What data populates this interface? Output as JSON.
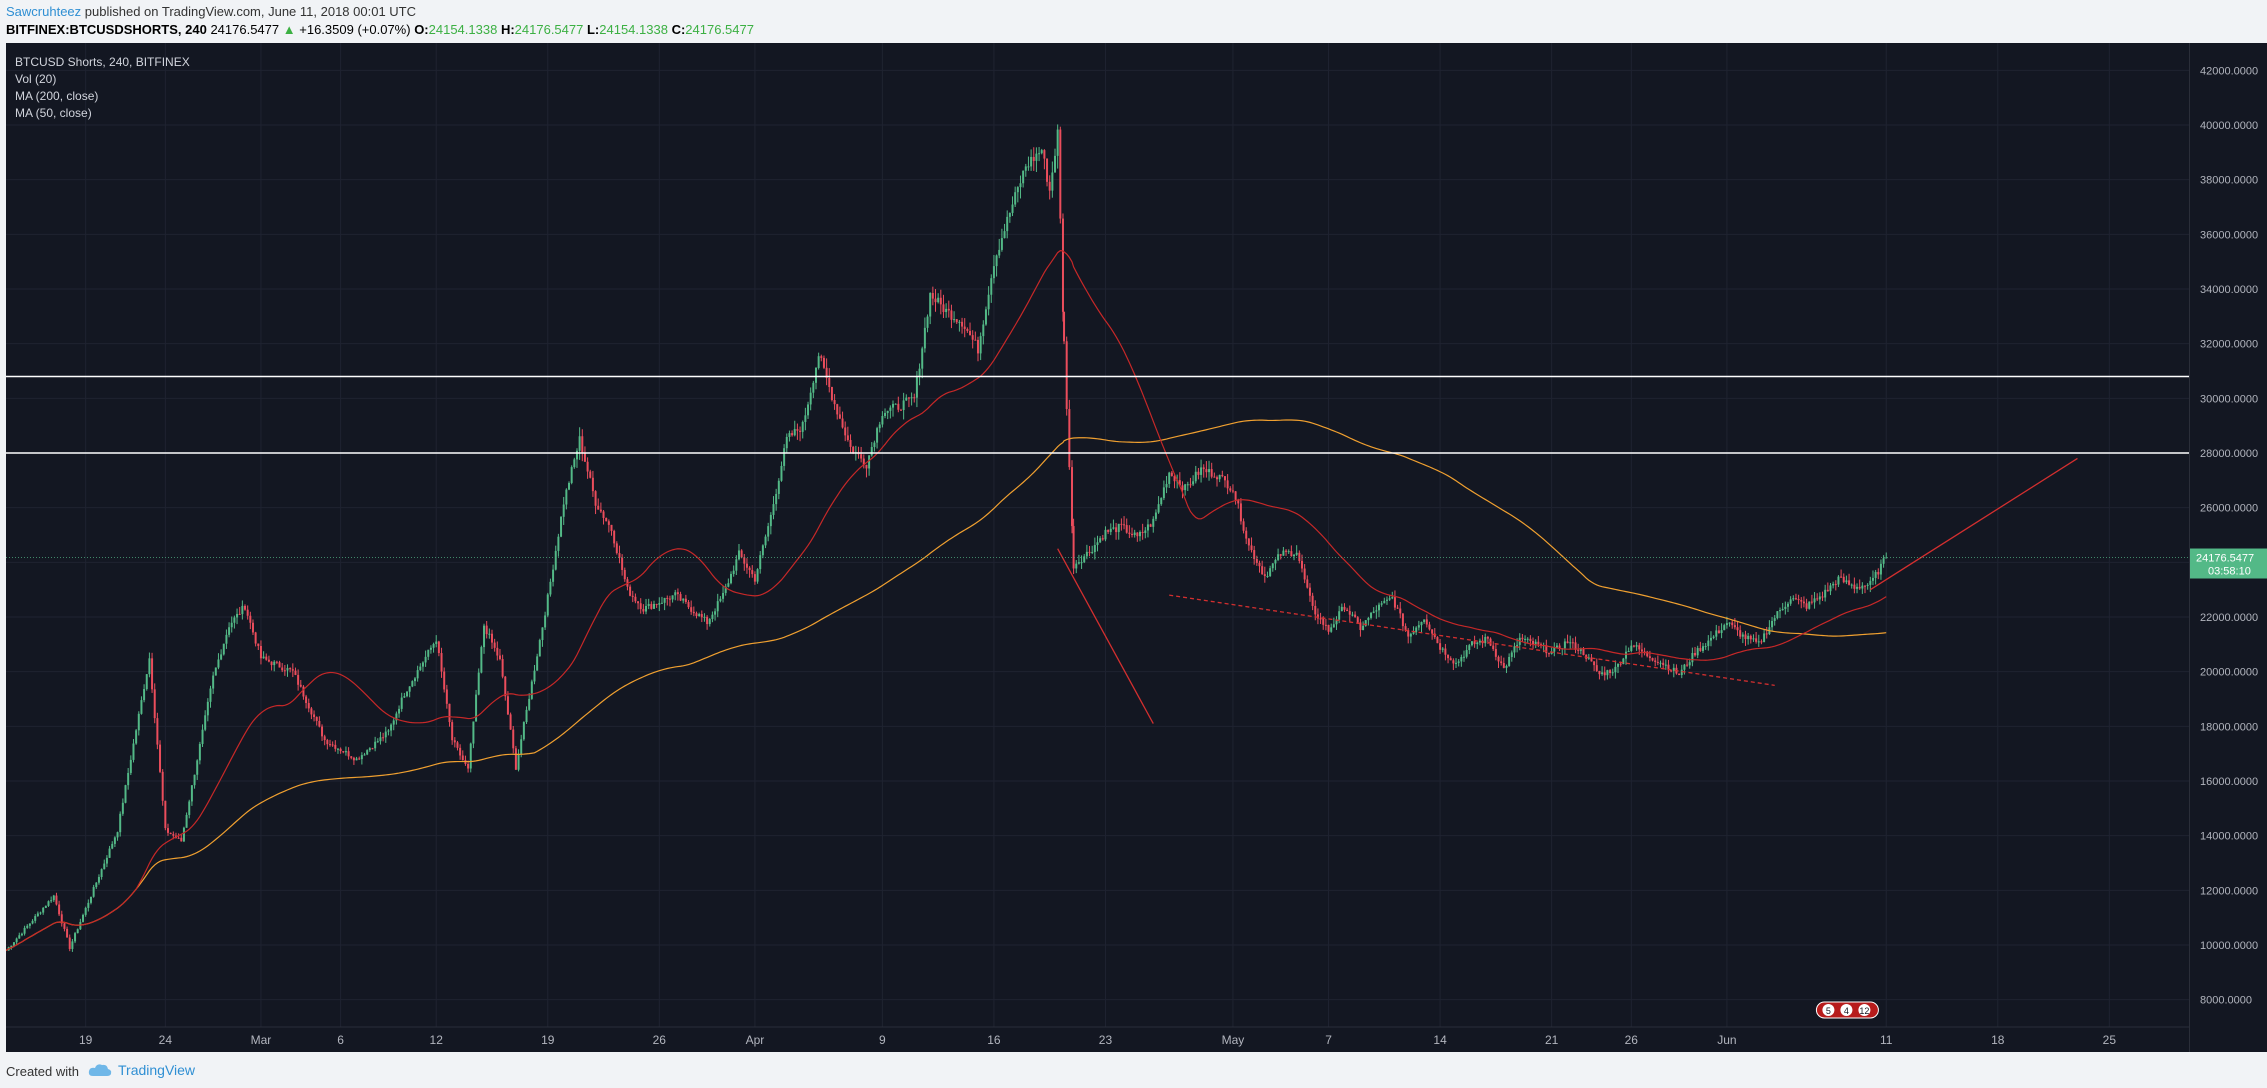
{
  "header": {
    "author": "Sawcruhteez",
    "published": "published on TradingView.com, June 11, 2018 00:01 UTC",
    "symbol": "BITFINEX:BTCUSDSHORTS, 240",
    "last": "24176.5477",
    "change_arrow": "▲",
    "change": "+16.3509 (+0.07%)",
    "o_label": "O:",
    "o_value": "24154.1338",
    "h_label": "H:",
    "h_value": "24176.5477",
    "l_label": "L:",
    "l_value": "24154.1338",
    "c_label": "C:",
    "c_value": "24176.5477"
  },
  "legend": {
    "title": "BTCUSD Shorts, 240, BITFINEX",
    "vol": "Vol (20)",
    "ma200": "MA (200, close)",
    "ma50": "MA (50, close)"
  },
  "price_tag": {
    "value": "24176.5477",
    "timer": "03:58:10"
  },
  "footer": {
    "created": "Created with",
    "brand": "TradingView"
  },
  "colors": {
    "background": "#131722",
    "up": "#53b987",
    "down": "#eb4d5c",
    "ma50": "#c62828",
    "ma200": "#f0a030",
    "hline": "#ffffff",
    "price_tag": "#53b987"
  },
  "chart_data": {
    "type": "candlestick",
    "y_ticks": [
      "42000.0000",
      "40000.0000",
      "38000.0000",
      "36000.0000",
      "34000.0000",
      "32000.0000",
      "30000.0000",
      "28000.0000",
      "26000.0000",
      "24000.0000",
      "22000.0000",
      "20000.0000",
      "18000.0000",
      "16000.0000",
      "14000.0000",
      "12000.0000",
      "10000.0000",
      "8000.0000"
    ],
    "ylim": [
      7000,
      43000
    ],
    "x_ticks": [
      "19",
      "24",
      "Mar",
      "6",
      "12",
      "19",
      "26",
      "Apr",
      "9",
      "16",
      "23",
      "May",
      "7",
      "14",
      "21",
      "26",
      "Jun",
      "11",
      "18",
      "25"
    ],
    "x_tick_days": [
      -21,
      -16,
      -10,
      -5,
      1,
      8,
      15,
      21,
      29,
      36,
      43,
      51,
      57,
      64,
      71,
      76,
      82,
      92,
      99,
      106
    ],
    "x_domain_days": [
      -26,
      111
    ],
    "x_origin_date": "2018-03-12",
    "horizontal_lines": [
      30800,
      28000
    ],
    "trend_lines": [
      {
        "style": "dashed",
        "from": [
          47,
          22800
        ],
        "to": [
          85,
          19500
        ]
      },
      {
        "style": "solid",
        "from": [
          40,
          24500
        ],
        "to": [
          46,
          18100
        ]
      },
      {
        "style": "solid",
        "from": [
          91,
          23000
        ],
        "to": [
          104,
          27800
        ]
      }
    ],
    "last_price": 24176.5477,
    "ohlc_key_points": [
      [
        -26,
        9800
      ],
      [
        -23,
        11800
      ],
      [
        -22,
        9900
      ],
      [
        -19,
        14200
      ],
      [
        -17,
        20500
      ],
      [
        -16,
        14200
      ],
      [
        -15,
        13800
      ],
      [
        -13,
        19800
      ],
      [
        -12,
        21700
      ],
      [
        -11,
        22400
      ],
      [
        -10,
        20500
      ],
      [
        -8,
        20000
      ],
      [
        -6,
        17500
      ],
      [
        -4,
        16800
      ],
      [
        -2,
        17800
      ],
      [
        -1,
        19200
      ],
      [
        1,
        21200
      ],
      [
        2,
        17500
      ],
      [
        3,
        16400
      ],
      [
        4,
        21700
      ],
      [
        5,
        20400
      ],
      [
        6,
        16500
      ],
      [
        8,
        22700
      ],
      [
        9,
        26200
      ],
      [
        10,
        28500
      ],
      [
        11,
        26200
      ],
      [
        12,
        25200
      ],
      [
        13,
        23000
      ],
      [
        14,
        22300
      ],
      [
        16,
        22800
      ],
      [
        18,
        21800
      ],
      [
        19,
        22800
      ],
      [
        20,
        24300
      ],
      [
        21,
        23400
      ],
      [
        22,
        25700
      ],
      [
        23,
        28500
      ],
      [
        24,
        29000
      ],
      [
        25,
        31600
      ],
      [
        26,
        29800
      ],
      [
        27,
        28200
      ],
      [
        28,
        27600
      ],
      [
        29,
        29500
      ],
      [
        30,
        29700
      ],
      [
        31,
        30000
      ],
      [
        32,
        33800
      ],
      [
        33,
        33200
      ],
      [
        34,
        32800
      ],
      [
        35,
        31800
      ],
      [
        36,
        35000
      ],
      [
        37,
        36800
      ],
      [
        38,
        38500
      ],
      [
        39,
        39100
      ],
      [
        39.5,
        37600
      ],
      [
        40,
        39700
      ],
      [
        40.4,
        32000
      ],
      [
        41,
        23900
      ],
      [
        42,
        24400
      ],
      [
        43,
        25100
      ],
      [
        44,
        25300
      ],
      [
        45,
        24900
      ],
      [
        46,
        25500
      ],
      [
        47,
        27300
      ],
      [
        48,
        26700
      ],
      [
        49,
        27400
      ],
      [
        50,
        27200
      ],
      [
        51,
        26700
      ],
      [
        52,
        24600
      ],
      [
        53,
        23500
      ],
      [
        54,
        24300
      ],
      [
        55,
        24400
      ],
      [
        56,
        22300
      ],
      [
        57,
        21500
      ],
      [
        58,
        22400
      ],
      [
        59,
        21600
      ],
      [
        60,
        22300
      ],
      [
        61,
        22700
      ],
      [
        62,
        21300
      ],
      [
        63,
        22000
      ],
      [
        64,
        20900
      ],
      [
        65,
        20300
      ],
      [
        66,
        21000
      ],
      [
        67,
        21200
      ],
      [
        68,
        20100
      ],
      [
        69,
        21200
      ],
      [
        70,
        21000
      ],
      [
        71,
        20700
      ],
      [
        72,
        21100
      ],
      [
        73,
        20700
      ],
      [
        74,
        19900
      ],
      [
        75,
        20100
      ],
      [
        76,
        21000
      ],
      [
        77,
        20600
      ],
      [
        78,
        20300
      ],
      [
        79,
        19900
      ],
      [
        80,
        20700
      ],
      [
        81,
        21200
      ],
      [
        82,
        21800
      ],
      [
        83,
        21300
      ],
      [
        84,
        21000
      ],
      [
        85,
        22000
      ],
      [
        86,
        22700
      ],
      [
        87,
        22400
      ],
      [
        88,
        22800
      ],
      [
        89,
        23400
      ],
      [
        90,
        23100
      ],
      [
        91,
        23200
      ],
      [
        92,
        24176.5477
      ]
    ]
  }
}
